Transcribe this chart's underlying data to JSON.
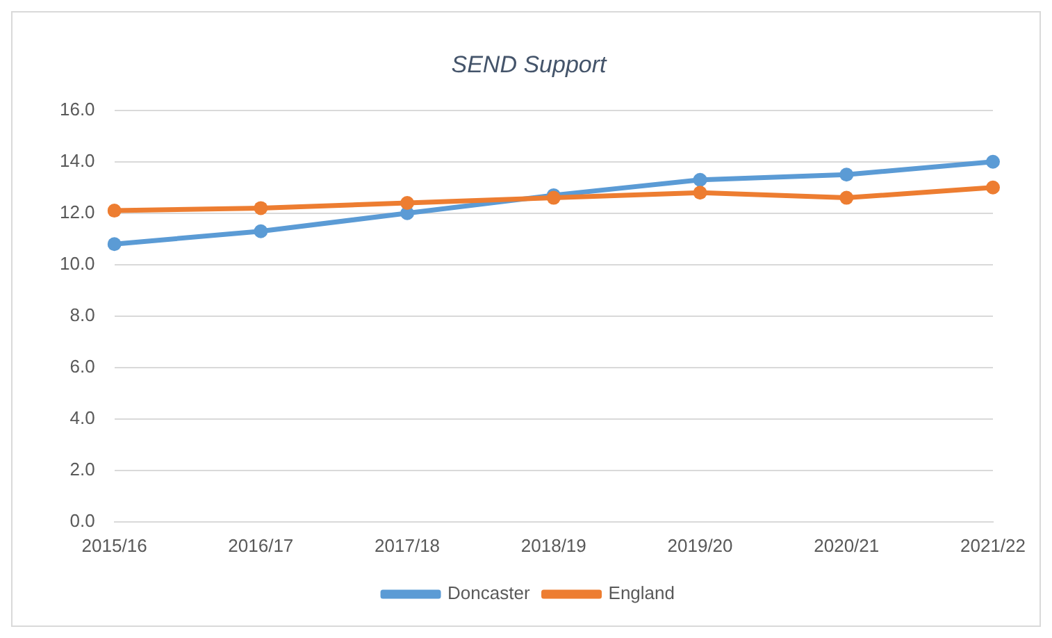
{
  "chart_data": {
    "type": "line",
    "title": "SEND Support",
    "categories": [
      "2015/16",
      "2016/17",
      "2017/18",
      "2018/19",
      "2019/20",
      "2020/21",
      "2021/22"
    ],
    "series": [
      {
        "name": "Doncaster",
        "color": "#5b9bd5",
        "values": [
          10.8,
          11.3,
          12.0,
          12.7,
          13.3,
          13.5,
          14.0
        ]
      },
      {
        "name": "England",
        "color": "#ed7d31",
        "values": [
          12.1,
          12.2,
          12.4,
          12.6,
          12.8,
          12.6,
          13.0
        ]
      }
    ],
    "ylim": [
      0,
      16
    ],
    "yticks": [
      {
        "value": 0,
        "label": "0.0"
      },
      {
        "value": 2,
        "label": "2.0"
      },
      {
        "value": 4,
        "label": "4.0"
      },
      {
        "value": 6,
        "label": "6.0"
      },
      {
        "value": 8,
        "label": "8.0"
      },
      {
        "value": 10,
        "label": "10.0"
      },
      {
        "value": 12,
        "label": "12.0"
      },
      {
        "value": 14,
        "label": "14.0"
      },
      {
        "value": 16,
        "label": "16.0"
      }
    ],
    "grid": "y",
    "legend": "bottom",
    "marker": "circle",
    "line_style": "solid"
  }
}
